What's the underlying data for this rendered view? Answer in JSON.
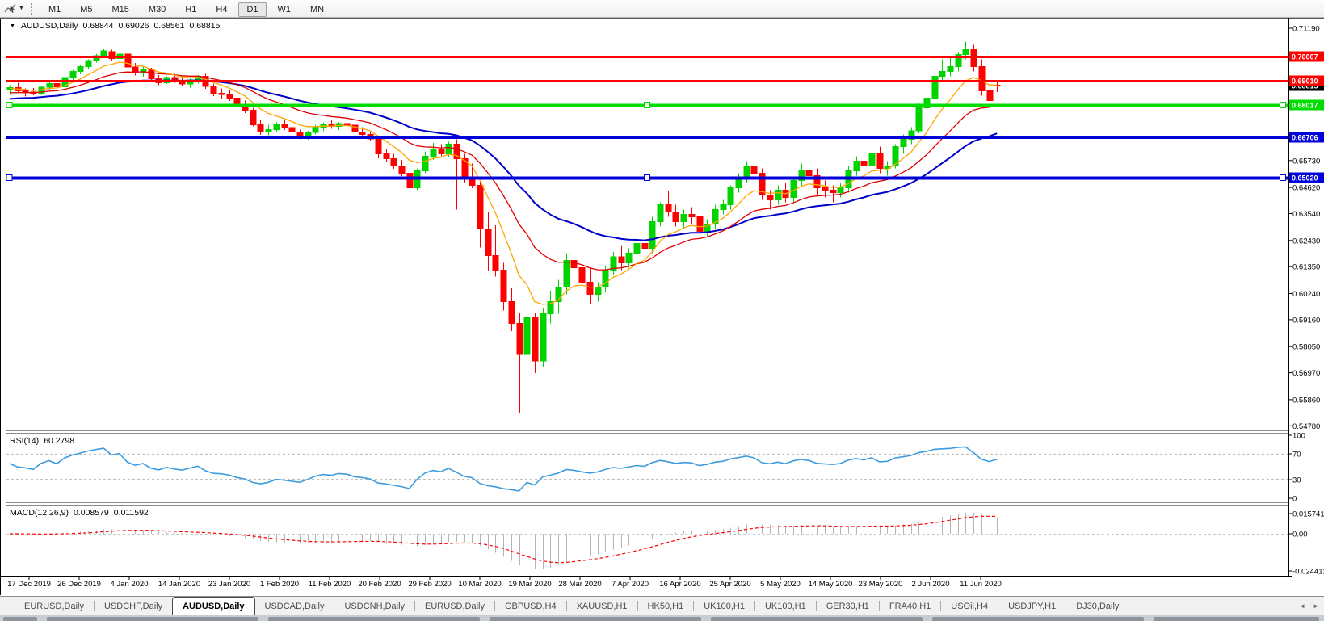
{
  "toolbar": {
    "timeframes": [
      "M1",
      "M5",
      "M15",
      "M30",
      "H1",
      "H4",
      "D1",
      "W1",
      "MN"
    ],
    "active_timeframe": "D1"
  },
  "chart": {
    "title_symbol": "AUDUSD,Daily",
    "title_open": "0.68844",
    "title_high": "0.69026",
    "title_low": "0.68561",
    "title_close": "0.68815",
    "price_axis_ticks": [
      "0.71190",
      "0.70110",
      "0.69030",
      "0.67920",
      "0.66810",
      "0.65730",
      "0.64620",
      "0.63540",
      "0.62430",
      "0.61350",
      "0.60240",
      "0.59160",
      "0.58050",
      "0.56970",
      "0.55860",
      "0.54780"
    ],
    "date_axis_ticks": [
      "17 Dec 2019",
      "26 Dec 2019",
      "4 Jan 2020",
      "14 Jan 2020",
      "23 Jan 2020",
      "1 Feb 2020",
      "11 Feb 2020",
      "20 Feb 2020",
      "29 Feb 2020",
      "10 Mar 2020",
      "19 Mar 2020",
      "28 Mar 2020",
      "7 Apr 2020",
      "16 Apr 2020",
      "25 Apr 2020",
      "5 May 2020",
      "14 May 2020",
      "23 May 2020",
      "2 Jun 2020",
      "11 Jun 2020"
    ],
    "bid_badge": "0.68815"
  },
  "rsi": {
    "label": "RSI(14)",
    "value": "60.2798",
    "axis_ticks": [
      "100",
      "70",
      "30",
      "0"
    ]
  },
  "macd": {
    "label": "MACD(12,26,9)",
    "value_main": "0.008579",
    "value_signal": "0.011592",
    "axis_ticks": [
      "0.015741",
      "0.00",
      "-0.024412"
    ]
  },
  "tabbar": {
    "tabs": [
      "EURUSD,Daily",
      "USDCHF,Daily",
      "AUDUSD,Daily",
      "USDCAD,Daily",
      "USDCNH,Daily",
      "EURUSD,Daily",
      "GBPUSD,H4",
      "XAUUSD,H1",
      "HK50,H1",
      "UK100,H1",
      "UK100,H1",
      "GER30,H1",
      "FRA40,H1",
      "USOil,H4",
      "USDJPY,H1",
      "DJ30,Daily"
    ],
    "active_index": 2,
    "scroll_left": "◄",
    "scroll_right": "►"
  },
  "colors": {
    "bull": "#00D400",
    "bear": "#FF0000",
    "ma_fast": "#FFA500",
    "ma_medium": "#E00000",
    "ma_slow": "#0000C8",
    "bid_line": "#C0C0C0",
    "bid_badge_bg": "#000000",
    "rsi_line": "#3E9CDE",
    "rsi_levels": "#B8B8B8",
    "macd_hist": "#B4B4B4",
    "macd_signal": "#FF0000"
  },
  "chart_data": {
    "type": "candlestick",
    "symbol": "AUDUSD",
    "timeframe": "Daily",
    "last_ohlc": {
      "open": 0.68844,
      "high": 0.69026,
      "low": 0.68561,
      "close": 0.68815
    },
    "y_axis_range": [
      0.5478,
      0.7119
    ],
    "bid_price": 0.68815,
    "rsi_current": 60.2798,
    "rsi_levels": [
      70,
      30
    ],
    "macd_current_main": 0.008579,
    "macd_current_signal": 0.011592,
    "macd_axis": {
      "max": 0.015741,
      "min": -0.024412
    },
    "horizontal_lines": [
      {
        "price": 0.70007,
        "color": "#FF0000",
        "width": 3,
        "selected": false
      },
      {
        "price": 0.6901,
        "color": "#FF0000",
        "width": 3,
        "selected": false
      },
      {
        "price": 0.68017,
        "color": "#00DC00",
        "width": 4,
        "selected": true
      },
      {
        "price": 0.66706,
        "color": "#0000D8",
        "width": 3,
        "selected": false
      },
      {
        "price": 0.6502,
        "color": "#0000D8",
        "width": 4,
        "selected": true
      }
    ],
    "candles": [
      [
        0.6864,
        0.6884,
        0.6844,
        0.6874
      ],
      [
        0.6874,
        0.6894,
        0.6854,
        0.686
      ],
      [
        0.686,
        0.6871,
        0.6838,
        0.6856
      ],
      [
        0.6856,
        0.6872,
        0.6843,
        0.6849
      ],
      [
        0.6849,
        0.6882,
        0.6844,
        0.6876
      ],
      [
        0.6876,
        0.6897,
        0.6863,
        0.6891
      ],
      [
        0.6891,
        0.6902,
        0.6869,
        0.6878
      ],
      [
        0.6878,
        0.6921,
        0.6873,
        0.6916
      ],
      [
        0.6916,
        0.6947,
        0.6906,
        0.6941
      ],
      [
        0.6941,
        0.6967,
        0.6929,
        0.6961
      ],
      [
        0.6961,
        0.6991,
        0.6952,
        0.6986
      ],
      [
        0.6986,
        0.7012,
        0.6977,
        0.7006
      ],
      [
        0.7006,
        0.7032,
        0.6996,
        0.7026
      ],
      [
        0.7023,
        0.7031,
        0.6984,
        0.6994
      ],
      [
        0.6994,
        0.7022,
        0.6981,
        0.7012
      ],
      [
        0.7012,
        0.7016,
        0.6949,
        0.6959
      ],
      [
        0.6959,
        0.6976,
        0.6924,
        0.6934
      ],
      [
        0.6934,
        0.6961,
        0.6919,
        0.6951
      ],
      [
        0.6951,
        0.6956,
        0.6899,
        0.6911
      ],
      [
        0.6911,
        0.6926,
        0.6884,
        0.6894
      ],
      [
        0.6894,
        0.6921,
        0.6889,
        0.6916
      ],
      [
        0.6916,
        0.6931,
        0.6894,
        0.6901
      ],
      [
        0.6901,
        0.6921,
        0.6879,
        0.6889
      ],
      [
        0.6889,
        0.6911,
        0.6874,
        0.6906
      ],
      [
        0.6906,
        0.6926,
        0.6891,
        0.6921
      ],
      [
        0.6921,
        0.6931,
        0.6869,
        0.6879
      ],
      [
        0.6879,
        0.6891,
        0.6839,
        0.6851
      ],
      [
        0.6851,
        0.6871,
        0.6829,
        0.6846
      ],
      [
        0.6846,
        0.6866,
        0.6819,
        0.6831
      ],
      [
        0.6831,
        0.6851,
        0.6789,
        0.6801
      ],
      [
        0.6801,
        0.6821,
        0.6769,
        0.6781
      ],
      [
        0.6781,
        0.6791,
        0.6714,
        0.6721
      ],
      [
        0.6721,
        0.6741,
        0.6679,
        0.6691
      ],
      [
        0.6691,
        0.6721,
        0.6677,
        0.6701
      ],
      [
        0.6701,
        0.6731,
        0.6691,
        0.6721
      ],
      [
        0.6721,
        0.6741,
        0.6699,
        0.6709
      ],
      [
        0.6709,
        0.6721,
        0.6679,
        0.6691
      ],
      [
        0.6691,
        0.6701,
        0.6661,
        0.6671
      ],
      [
        0.6671,
        0.6696,
        0.6659,
        0.6689
      ],
      [
        0.6689,
        0.6721,
        0.6681,
        0.6711
      ],
      [
        0.6711,
        0.6731,
        0.6694,
        0.6723
      ],
      [
        0.6723,
        0.6741,
        0.6704,
        0.6714
      ],
      [
        0.6714,
        0.6731,
        0.6699,
        0.6726
      ],
      [
        0.6726,
        0.6746,
        0.6709,
        0.6719
      ],
      [
        0.6719,
        0.6726,
        0.6684,
        0.6691
      ],
      [
        0.6691,
        0.6711,
        0.6669,
        0.6681
      ],
      [
        0.6681,
        0.6696,
        0.6654,
        0.6663
      ],
      [
        0.6663,
        0.6671,
        0.6583,
        0.6601
      ],
      [
        0.6601,
        0.6621,
        0.6569,
        0.6581
      ],
      [
        0.6581,
        0.6601,
        0.6539,
        0.6551
      ],
      [
        0.6551,
        0.6576,
        0.6509,
        0.6521
      ],
      [
        0.6521,
        0.6541,
        0.6434,
        0.6461
      ],
      [
        0.6461,
        0.6541,
        0.6451,
        0.6531
      ],
      [
        0.6531,
        0.6611,
        0.6521,
        0.6591
      ],
      [
        0.6591,
        0.6646,
        0.6576,
        0.6621
      ],
      [
        0.6621,
        0.6641,
        0.6591,
        0.6601
      ],
      [
        0.6601,
        0.6651,
        0.6586,
        0.6641
      ],
      [
        0.6641,
        0.6661,
        0.6371,
        0.6581
      ],
      [
        0.6581,
        0.6601,
        0.6479,
        0.6501
      ],
      [
        0.6501,
        0.6561,
        0.6459,
        0.6471
      ],
      [
        0.6471,
        0.6491,
        0.6214,
        0.6291
      ],
      [
        0.6291,
        0.6361,
        0.6119,
        0.6181
      ],
      [
        0.6181,
        0.6306,
        0.6094,
        0.6121
      ],
      [
        0.6121,
        0.6151,
        0.5954,
        0.5991
      ],
      [
        0.5991,
        0.6046,
        0.5869,
        0.5901
      ],
      [
        0.5901,
        0.5946,
        0.553,
        0.5775
      ],
      [
        0.5775,
        0.5945,
        0.5685,
        0.5925
      ],
      [
        0.5925,
        0.5945,
        0.5696,
        0.5745
      ],
      [
        0.5745,
        0.5966,
        0.5721,
        0.5941
      ],
      [
        0.5941,
        0.6036,
        0.5901,
        0.5991
      ],
      [
        0.5991,
        0.6081,
        0.5941,
        0.6051
      ],
      [
        0.6051,
        0.6191,
        0.6021,
        0.6161
      ],
      [
        0.6161,
        0.6201,
        0.6091,
        0.6131
      ],
      [
        0.6131,
        0.6161,
        0.6051,
        0.6071
      ],
      [
        0.6071,
        0.6131,
        0.5981,
        0.6021
      ],
      [
        0.6021,
        0.6071,
        0.5991,
        0.6051
      ],
      [
        0.6051,
        0.6141,
        0.6031,
        0.6121
      ],
      [
        0.6121,
        0.6196,
        0.6101,
        0.6176
      ],
      [
        0.6176,
        0.6221,
        0.6121,
        0.6151
      ],
      [
        0.6151,
        0.6211,
        0.6131,
        0.6191
      ],
      [
        0.6191,
        0.6251,
        0.6161,
        0.6231
      ],
      [
        0.6231,
        0.6261,
        0.6181,
        0.6211
      ],
      [
        0.6211,
        0.6341,
        0.6191,
        0.6321
      ],
      [
        0.6321,
        0.6401,
        0.6301,
        0.6391
      ],
      [
        0.6391,
        0.6446,
        0.6341,
        0.6361
      ],
      [
        0.6361,
        0.6391,
        0.6301,
        0.6321
      ],
      [
        0.6321,
        0.6371,
        0.6291,
        0.6351
      ],
      [
        0.6351,
        0.6381,
        0.6311,
        0.6341
      ],
      [
        0.6341,
        0.6361,
        0.6253,
        0.6281
      ],
      [
        0.6281,
        0.6331,
        0.6261,
        0.6311
      ],
      [
        0.6311,
        0.6391,
        0.6291,
        0.6371
      ],
      [
        0.6371,
        0.6411,
        0.6351,
        0.6391
      ],
      [
        0.6391,
        0.6471,
        0.6371,
        0.6461
      ],
      [
        0.6461,
        0.6521,
        0.6441,
        0.6501
      ],
      [
        0.6501,
        0.6571,
        0.6481,
        0.6551
      ],
      [
        0.6551,
        0.6576,
        0.6501,
        0.6521
      ],
      [
        0.6521,
        0.6541,
        0.6411,
        0.6431
      ],
      [
        0.6431,
        0.6451,
        0.6371,
        0.6411
      ],
      [
        0.6411,
        0.6471,
        0.6391,
        0.6451
      ],
      [
        0.6451,
        0.6481,
        0.6401,
        0.6421
      ],
      [
        0.6421,
        0.6501,
        0.6401,
        0.6491
      ],
      [
        0.6491,
        0.6561,
        0.6471,
        0.6531
      ],
      [
        0.6531,
        0.6561,
        0.6491,
        0.6511
      ],
      [
        0.6511,
        0.6541,
        0.6431,
        0.6461
      ],
      [
        0.6461,
        0.6491,
        0.6421,
        0.6451
      ],
      [
        0.6451,
        0.6471,
        0.6401,
        0.6441
      ],
      [
        0.6441,
        0.6481,
        0.6421,
        0.6461
      ],
      [
        0.6461,
        0.6551,
        0.6441,
        0.6531
      ],
      [
        0.6531,
        0.6591,
        0.6511,
        0.6571
      ],
      [
        0.6571,
        0.6601,
        0.6531,
        0.6551
      ],
      [
        0.6551,
        0.6621,
        0.6541,
        0.6601
      ],
      [
        0.6601,
        0.6631,
        0.6521,
        0.6541
      ],
      [
        0.6541,
        0.6571,
        0.6511,
        0.6551
      ],
      [
        0.6551,
        0.6641,
        0.6541,
        0.6631
      ],
      [
        0.6631,
        0.6681,
        0.6601,
        0.6661
      ],
      [
        0.6661,
        0.6711,
        0.6641,
        0.6696
      ],
      [
        0.6696,
        0.6811,
        0.6686,
        0.6791
      ],
      [
        0.6791,
        0.6851,
        0.6751,
        0.6831
      ],
      [
        0.6831,
        0.6931,
        0.6811,
        0.6921
      ],
      [
        0.6921,
        0.6991,
        0.6901,
        0.6941
      ],
      [
        0.6941,
        0.7001,
        0.6921,
        0.6961
      ],
      [
        0.6961,
        0.7021,
        0.6941,
        0.7011
      ],
      [
        0.7011,
        0.7064,
        0.6991,
        0.7031
      ],
      [
        0.7031,
        0.7051,
        0.6941,
        0.6961
      ],
      [
        0.6961,
        0.6991,
        0.6841,
        0.6861
      ],
      [
        0.6861,
        0.6951,
        0.6776,
        0.6821
      ],
      [
        0.68844,
        0.69026,
        0.68561,
        0.68815
      ]
    ]
  }
}
